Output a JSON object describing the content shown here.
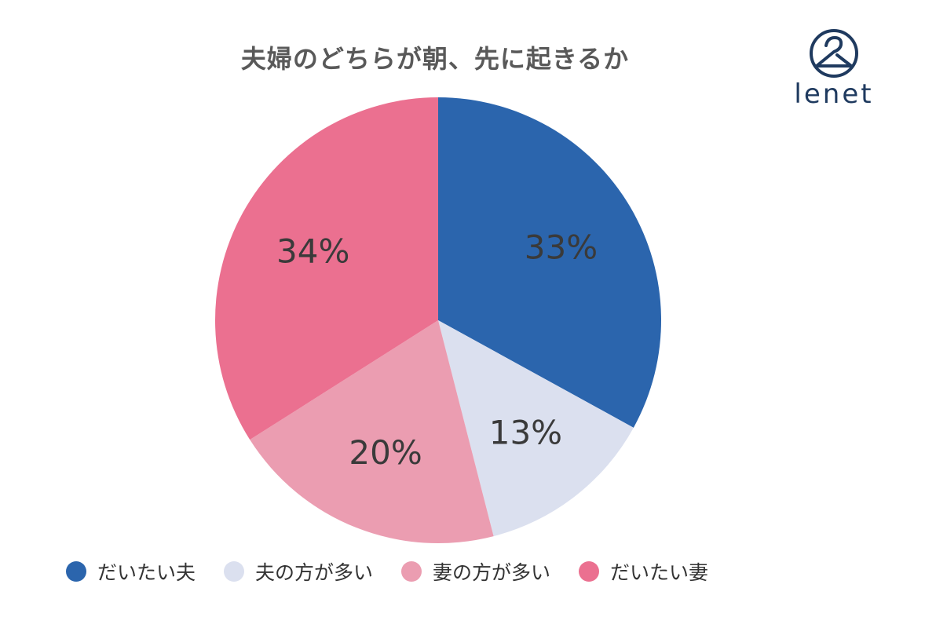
{
  "colors": {
    "title": "#595959",
    "logo": "#1f3a5f",
    "label": "#3a3a3a"
  },
  "logo": {
    "text": "lenet",
    "icon": "hanger-circle-icon"
  },
  "chart_data": {
    "type": "pie",
    "title": "夫婦のどちらが朝、先に起きるか",
    "start_angle_deg": 0,
    "direction": "clockwise",
    "slices": [
      {
        "label": "だいたい夫",
        "value": 33,
        "display": "33%",
        "color": "#2b65ad"
      },
      {
        "label": "夫の方が多い",
        "value": 13,
        "display": "13%",
        "color": "#dbe0ef"
      },
      {
        "label": "妻の方が多い",
        "value": 20,
        "display": "20%",
        "color": "#eb9db1"
      },
      {
        "label": "だいたい妻",
        "value": 34,
        "display": "34%",
        "color": "#eb7090"
      }
    ],
    "legend_position": "bottom"
  }
}
